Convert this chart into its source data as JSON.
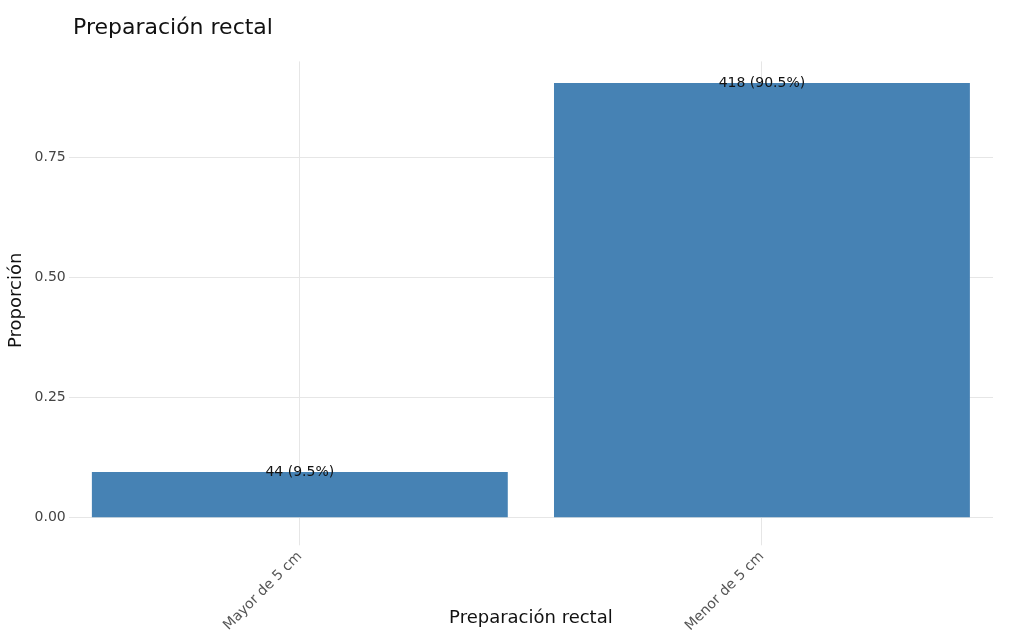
{
  "chart_data": {
    "type": "bar",
    "title": "Preparación rectal",
    "xlabel": "Preparación rectal",
    "ylabel": "Proporción",
    "categories": [
      "Mayor de 5 cm",
      "Menor de 5 cm"
    ],
    "values": [
      0.095,
      0.905
    ],
    "value_labels": [
      "44 (9.5%)",
      "418 (90.5%)"
    ],
    "color": "#4682b4",
    "ylim": [
      -0.045,
      0.95
    ],
    "yticks": [
      {
        "value": 0,
        "label": "0.00"
      },
      {
        "value": 0.25,
        "label": "0.25"
      },
      {
        "value": 0.5,
        "label": "0.50"
      },
      {
        "value": 0.75,
        "label": "0.75"
      }
    ],
    "grid": true
  }
}
